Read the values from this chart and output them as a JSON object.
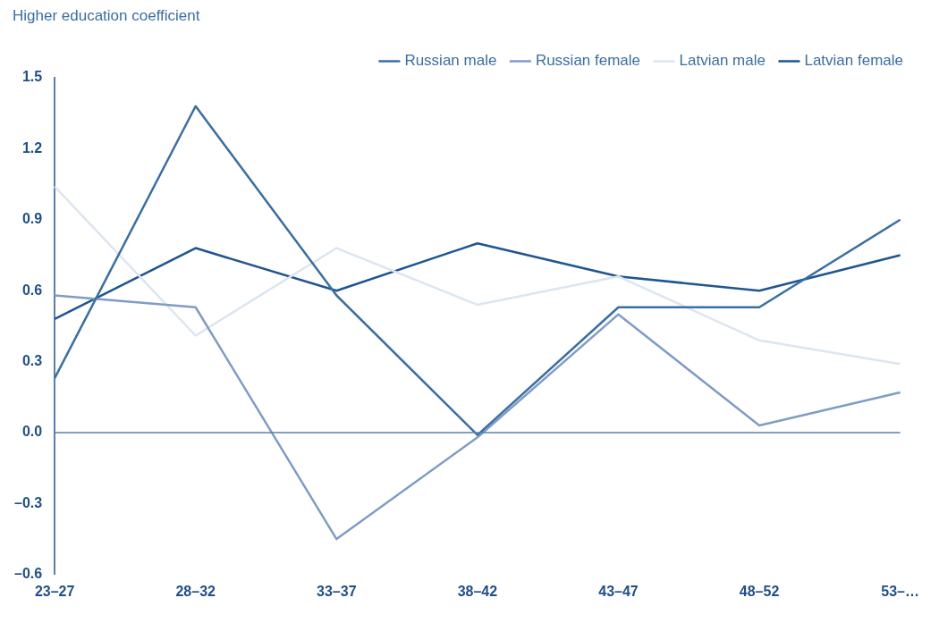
{
  "chart_data": {
    "type": "line",
    "ylabel": "Higher education coefficient",
    "categories": [
      "23–27",
      "28–32",
      "33–37",
      "38–42",
      "43–47",
      "48–52",
      "53–…"
    ],
    "series": [
      {
        "name": "Russian male",
        "color": "#3a6ea5",
        "values": [
          0.23,
          1.38,
          0.58,
          -0.01,
          0.53,
          0.53,
          0.9
        ]
      },
      {
        "name": "Russian female",
        "color": "#7f9cc6",
        "values": [
          0.58,
          0.53,
          -0.45,
          -0.02,
          0.5,
          0.03,
          0.17
        ]
      },
      {
        "name": "Latvian male",
        "color": "#dce5f0",
        "values": [
          1.04,
          0.41,
          0.78,
          0.54,
          0.66,
          0.39,
          0.29
        ]
      },
      {
        "name": "Latvian female",
        "color": "#1f5591",
        "values": [
          0.48,
          0.78,
          0.6,
          0.8,
          0.66,
          0.6,
          0.75
        ]
      }
    ],
    "ylim": [
      -0.6,
      1.5
    ],
    "yticks": [
      {
        "value": -0.6,
        "label": "–0.6"
      },
      {
        "value": -0.3,
        "label": "–0.3"
      },
      {
        "value": 0,
        "label": "0.0"
      },
      0.3,
      0.6,
      0.9,
      1.2,
      1.5
    ],
    "ref_lines": [
      {
        "axis": "y",
        "value": 0,
        "color": "#5a7fae"
      }
    ],
    "grid": false,
    "legend": "top right",
    "marker": "none",
    "line_style": "solid"
  }
}
